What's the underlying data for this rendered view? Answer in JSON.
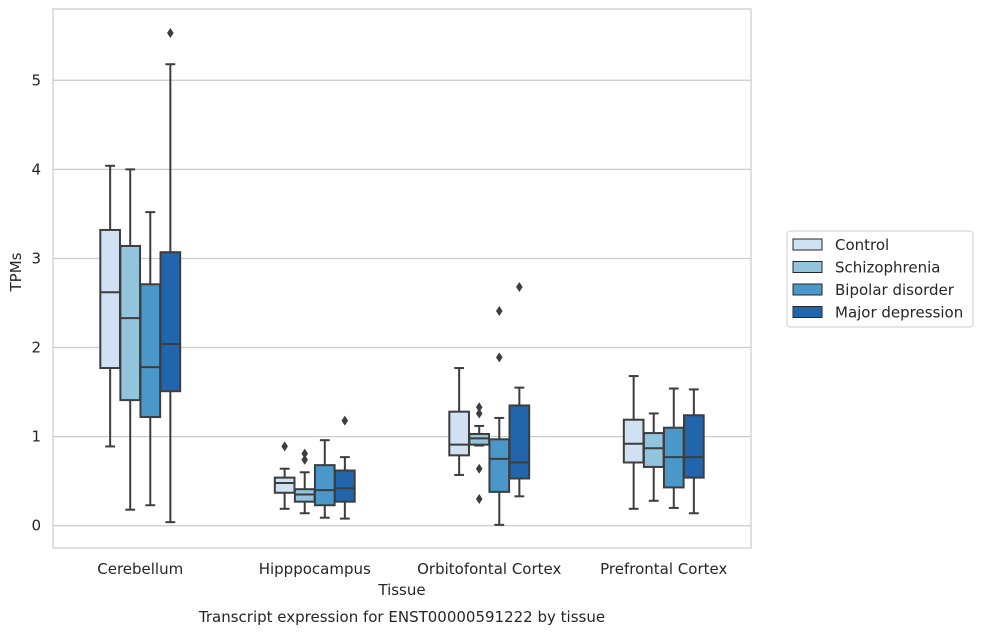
{
  "chart_data": {
    "type": "box",
    "title": "",
    "caption": "Transcript expression for ENST00000591222 by tissue",
    "xlabel": "Tissue",
    "ylabel": "TPMs",
    "ylim": [
      -0.25,
      5.8
    ],
    "yticks": [
      0,
      1,
      2,
      3,
      4,
      5
    ],
    "grid": "horizontal",
    "legend_position": "right",
    "categories": [
      "Cerebellum",
      "Hipppocampus",
      "Orbitofontal Cortex",
      "Prefrontal Cortex"
    ],
    "series": [
      {
        "name": "Control",
        "color": "#cfe1f2",
        "boxes": [
          {
            "whislo": 0.89,
            "q1": 1.77,
            "med": 2.62,
            "q3": 3.32,
            "whishi": 4.04,
            "fliers": []
          },
          {
            "whislo": 0.19,
            "q1": 0.37,
            "med": 0.48,
            "q3": 0.54,
            "whishi": 0.64,
            "fliers": [
              0.89
            ]
          },
          {
            "whislo": 0.57,
            "q1": 0.79,
            "med": 0.91,
            "q3": 1.28,
            "whishi": 1.77,
            "fliers": []
          },
          {
            "whislo": 0.19,
            "q1": 0.71,
            "med": 0.92,
            "q3": 1.19,
            "whishi": 1.68,
            "fliers": []
          }
        ]
      },
      {
        "name": "Schizophrenia",
        "color": "#93c4de",
        "boxes": [
          {
            "whislo": 0.18,
            "q1": 1.41,
            "med": 2.33,
            "q3": 3.14,
            "whishi": 4.0,
            "fliers": []
          },
          {
            "whislo": 0.14,
            "q1": 0.27,
            "med": 0.35,
            "q3": 0.41,
            "whishi": 0.6,
            "fliers": [
              0.74,
              0.81
            ]
          },
          {
            "whislo": 0.9,
            "q1": 0.91,
            "med": 0.98,
            "q3": 1.03,
            "whishi": 1.12,
            "fliers": [
              0.3,
              0.64,
              1.26,
              1.33
            ]
          },
          {
            "whislo": 0.28,
            "q1": 0.66,
            "med": 0.87,
            "q3": 1.04,
            "whishi": 1.26,
            "fliers": []
          }
        ]
      },
      {
        "name": "Bipolar disorder",
        "color": "#4a98c9",
        "boxes": [
          {
            "whislo": 0.23,
            "q1": 1.22,
            "med": 1.78,
            "q3": 2.71,
            "whishi": 3.52,
            "fliers": []
          },
          {
            "whislo": 0.09,
            "q1": 0.23,
            "med": 0.4,
            "q3": 0.68,
            "whishi": 0.96,
            "fliers": []
          },
          {
            "whislo": 0.01,
            "q1": 0.38,
            "med": 0.75,
            "q3": 0.97,
            "whishi": 1.21,
            "fliers": [
              1.89,
              2.41
            ]
          },
          {
            "whislo": 0.2,
            "q1": 0.43,
            "med": 0.77,
            "q3": 1.1,
            "whishi": 1.54,
            "fliers": []
          }
        ]
      },
      {
        "name": "Major depression",
        "color": "#2166ac",
        "boxes": [
          {
            "whislo": 0.04,
            "q1": 1.51,
            "med": 2.04,
            "q3": 3.07,
            "whishi": 5.18,
            "fliers": [
              5.53
            ]
          },
          {
            "whislo": 0.08,
            "q1": 0.27,
            "med": 0.42,
            "q3": 0.62,
            "whishi": 0.77,
            "fliers": [
              1.18
            ]
          },
          {
            "whislo": 0.33,
            "q1": 0.53,
            "med": 0.71,
            "q3": 1.35,
            "whishi": 1.55,
            "fliers": [
              2.68
            ]
          },
          {
            "whislo": 0.14,
            "q1": 0.54,
            "med": 0.77,
            "q3": 1.24,
            "whishi": 1.53,
            "fliers": []
          }
        ]
      }
    ]
  }
}
